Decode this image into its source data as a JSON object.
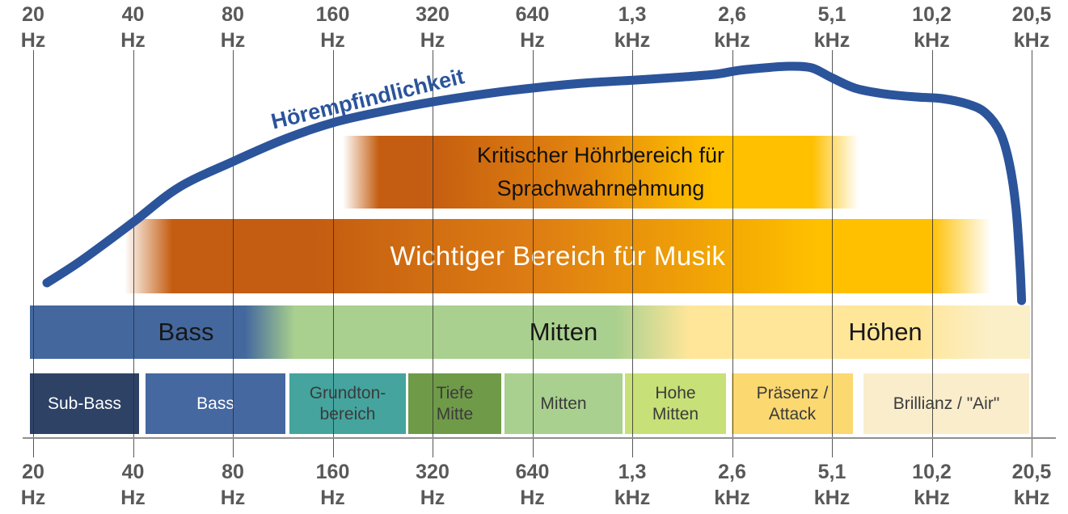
{
  "colors": {
    "curve_blue": "#2B549B",
    "band_dark_orange": "#C45D11",
    "band_gold": "#FFC000",
    "main_bass_blue": "#44689E",
    "main_mitten_green": "#A9D08E",
    "main_hoehen_yellow": "#FFE699",
    "axis_label_gray": "#595959",
    "segment_text_dark": "#3B3B3B"
  },
  "chart_data": {
    "type": "line",
    "x_axis": {
      "scale": "log2",
      "range_hz": [
        20,
        20500
      ],
      "grid": true,
      "ticks": [
        {
          "value": "20",
          "unit": "Hz"
        },
        {
          "value": "40",
          "unit": "Hz"
        },
        {
          "value": "80",
          "unit": "Hz"
        },
        {
          "value": "160",
          "unit": "Hz"
        },
        {
          "value": "320",
          "unit": "Hz"
        },
        {
          "value": "640",
          "unit": "Hz"
        },
        {
          "value": "1,3",
          "unit": "kHz"
        },
        {
          "value": "2,6",
          "unit": "kHz"
        },
        {
          "value": "5,1",
          "unit": "kHz"
        },
        {
          "value": "10,2",
          "unit": "kHz"
        },
        {
          "value": "20,5",
          "unit": "kHz"
        }
      ]
    },
    "curve": {
      "name": "Hörempfindlichkeit",
      "y_meaning": "relative hearing sensitivity (unlabeled axis, 0–1 estimated)",
      "points_hz_rel": [
        [
          22,
          0.076
        ],
        [
          28,
          0.172
        ],
        [
          40,
          0.334
        ],
        [
          55,
          0.483
        ],
        [
          80,
          0.593
        ],
        [
          115,
          0.69
        ],
        [
          160,
          0.759
        ],
        [
          225,
          0.807
        ],
        [
          320,
          0.848
        ],
        [
          465,
          0.883
        ],
        [
          640,
          0.907
        ],
        [
          915,
          0.928
        ],
        [
          1300,
          0.941
        ],
        [
          1830,
          0.955
        ],
        [
          2280,
          0.966
        ],
        [
          2700,
          0.983
        ],
        [
          3200,
          0.993
        ],
        [
          3800,
          1.0
        ],
        [
          4450,
          0.993
        ],
        [
          5100,
          0.952
        ],
        [
          6000,
          0.907
        ],
        [
          7300,
          0.883
        ],
        [
          9200,
          0.869
        ],
        [
          11000,
          0.862
        ],
        [
          13200,
          0.838
        ],
        [
          14900,
          0.8
        ],
        [
          16500,
          0.714
        ],
        [
          17600,
          0.576
        ],
        [
          18400,
          0.386
        ],
        [
          18900,
          0.145
        ],
        [
          19100,
          0.0
        ]
      ]
    },
    "bands": {
      "speech_critical": {
        "line1": "Kritischer Höhrbereich für",
        "line2": "Sprachwahrnehmung",
        "approx_range": "175 Hz – 6 kHz"
      },
      "music": {
        "label": "Wichtiger Bereich für Musik",
        "approx_range": "40 Hz – 15 kHz"
      },
      "main_ranges": [
        {
          "label": "Bass",
          "approx_range": "20 – 150 Hz"
        },
        {
          "label": "Mitten",
          "approx_range": "150 Hz – 2 kHz"
        },
        {
          "label": "Höhen",
          "approx_range": "2 – 20,5 kHz"
        }
      ]
    },
    "segments": [
      {
        "lines": [
          "Sub-Bass"
        ],
        "approx_range": "20 – 45 Hz",
        "bg": "#2E4266",
        "fg": "#FFFFFF"
      },
      {
        "lines": [
          "Bass"
        ],
        "approx_range": "45 – 115 Hz",
        "bg": "#4568A0",
        "fg": "#FFFFFF"
      },
      {
        "lines": [
          "Grundton-",
          "bereich"
        ],
        "approx_range": "120 – 265 Hz",
        "bg": "#45A49E",
        "fg": "#3B3B3B"
      },
      {
        "lines": [
          "Tiefe",
          "Mitte"
        ],
        "approx_range": "270 – 510 Hz",
        "bg": "#6F9A48",
        "fg": "#3B3B3B"
      },
      {
        "lines": [
          "Mitten"
        ],
        "approx_range": "520 Hz – 1,2 kHz",
        "bg": "#A9D08E",
        "fg": "#3B3B3B"
      },
      {
        "lines": [
          "Hohe",
          "Mitten"
        ],
        "approx_range": "1,2 – 2,4 kHz",
        "bg": "#C7E077",
        "fg": "#3B3B3B"
      },
      {
        "lines": [
          "Präsenz /",
          "Attack"
        ],
        "approx_range": "2,5 – 6 kHz",
        "bg": "#FBD870",
        "fg": "#3B3B3B"
      },
      {
        "lines": [
          "Brillianz / \"Air\""
        ],
        "approx_range": "6,4 – 20,5 kHz",
        "bg": "#FAEDCC",
        "fg": "#3B3B3B"
      }
    ]
  }
}
